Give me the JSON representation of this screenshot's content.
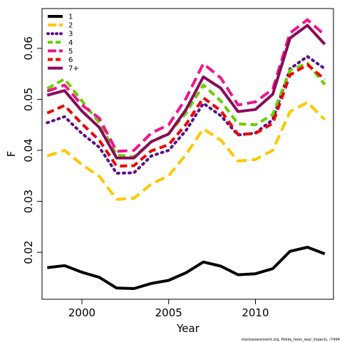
{
  "chart_data": {
    "type": "line",
    "xlabel": "Year",
    "ylabel": "F",
    "xlim": [
      1997.7,
      2014.5
    ],
    "ylim": [
      0.0108,
      0.0678
    ],
    "xticks": [
      2000,
      2005,
      2010
    ],
    "yticks": [
      0.02,
      0.03,
      0.04,
      0.05,
      0.06
    ],
    "ytick_labels": [
      "0.02",
      "0.03",
      "0.04",
      "0.05",
      "0.06"
    ],
    "xtick_labels": [
      "2000",
      "2005",
      "2010"
    ],
    "grid": false,
    "legend": "top-left",
    "credit": "stockassessment.org, Pekka_tests_seal_impacts, r7494",
    "x": [
      1998,
      1999,
      2000,
      2001,
      2002,
      2003,
      2004,
      2005,
      2006,
      2007,
      2008,
      2009,
      2010,
      2011,
      2012,
      2013,
      2014
    ],
    "series": [
      {
        "name": "1",
        "color": "#000000",
        "dash": "solid",
        "values": [
          0.017,
          0.0174,
          0.0161,
          0.0151,
          0.013,
          0.0129,
          0.0139,
          0.0145,
          0.016,
          0.0181,
          0.0173,
          0.0156,
          0.0158,
          0.0168,
          0.0202,
          0.021,
          0.0197
        ]
      },
      {
        "name": "2",
        "color": "#FFC800",
        "dash": "long",
        "values": [
          0.0389,
          0.04,
          0.0372,
          0.0349,
          0.0304,
          0.0306,
          0.0334,
          0.035,
          0.0392,
          0.0442,
          0.042,
          0.0379,
          0.0382,
          0.04,
          0.0476,
          0.0494,
          0.046
        ]
      },
      {
        "name": "3",
        "color": "#5A0F8C",
        "dash": "dot",
        "values": [
          0.0454,
          0.0466,
          0.0433,
          0.0406,
          0.0355,
          0.0356,
          0.0389,
          0.04,
          0.0439,
          0.0492,
          0.0468,
          0.043,
          0.0434,
          0.046,
          0.056,
          0.0584,
          0.056
        ]
      },
      {
        "name": "4",
        "color": "#6ACD00",
        "dash": "dash",
        "values": [
          0.0521,
          0.054,
          0.0497,
          0.0454,
          0.0391,
          0.0387,
          0.0417,
          0.0433,
          0.0473,
          0.0528,
          0.0497,
          0.0452,
          0.045,
          0.047,
          0.0557,
          0.0571,
          0.0529
        ]
      },
      {
        "name": "5",
        "color": "#F0148C",
        "dash": "long",
        "values": [
          0.0516,
          0.0528,
          0.0489,
          0.0463,
          0.0398,
          0.04,
          0.0434,
          0.045,
          0.0502,
          0.057,
          0.0542,
          0.0489,
          0.0495,
          0.052,
          0.063,
          0.0656,
          0.0626
        ]
      },
      {
        "name": "6",
        "color": "#F00000",
        "dash": "dash",
        "values": [
          0.0473,
          0.0488,
          0.0452,
          0.042,
          0.0369,
          0.037,
          0.0399,
          0.0411,
          0.0451,
          0.0503,
          0.0478,
          0.0431,
          0.0433,
          0.0453,
          0.0548,
          0.0568,
          0.0539
        ]
      },
      {
        "name": "7+",
        "color": "#8B0A5A",
        "dash": "solid",
        "values": [
          0.0508,
          0.0517,
          0.0477,
          0.0445,
          0.0385,
          0.0385,
          0.0417,
          0.0432,
          0.048,
          0.0544,
          0.0522,
          0.0476,
          0.048,
          0.051,
          0.062,
          0.0645,
          0.0608
        ]
      }
    ]
  }
}
